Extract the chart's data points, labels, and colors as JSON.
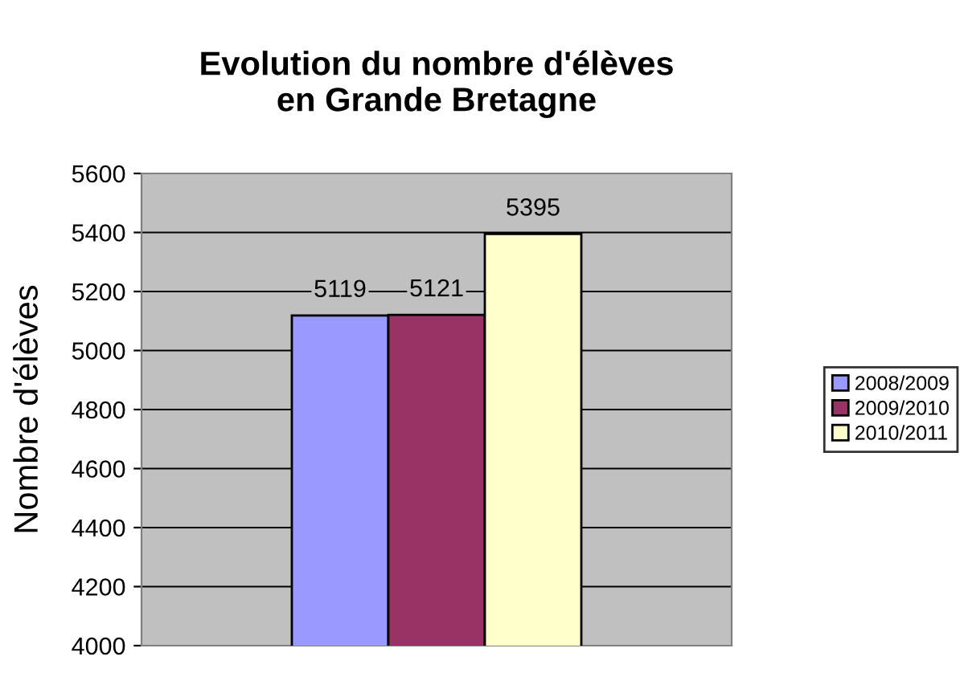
{
  "chart_data": {
    "type": "bar",
    "title": "Evolution du nombre d'élèves\nen Grande Bretagne",
    "ylabel": "Nombre d'élèves",
    "categories": [
      null
    ],
    "series": [
      {
        "name": "2008/2009",
        "color": "#9999ff",
        "values": [
          5119
        ]
      },
      {
        "name": "2009/2010",
        "color": "#993366",
        "values": [
          5121
        ]
      },
      {
        "name": "2010/2011",
        "color": "#ffffcc",
        "values": [
          5395
        ]
      }
    ],
    "ylim": [
      4000,
      5600
    ],
    "yticks": [
      4000,
      4200,
      4400,
      4600,
      4800,
      5000,
      5200,
      5400,
      5600
    ],
    "grid": "y",
    "legend": "right",
    "data_labels": true
  }
}
